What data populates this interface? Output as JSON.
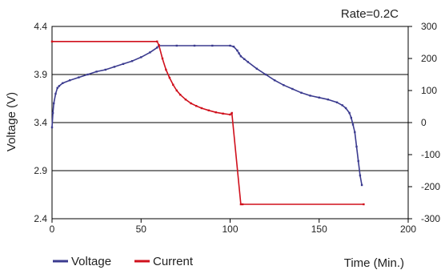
{
  "chart_data": {
    "type": "line",
    "annotation": "Rate=0.2C",
    "ylabel": "Voltage (V)",
    "xlabel": "Time (Min.)",
    "xlim": [
      0,
      200
    ],
    "ylim": [
      2.4,
      4.4
    ],
    "y2lim": [
      -300,
      300
    ],
    "x_ticks": [
      "0",
      "50",
      "100",
      "150",
      "200"
    ],
    "y_ticks": [
      "2.4",
      "2.9",
      "3.4",
      "3.9",
      "4.4"
    ],
    "y2_ticks": [
      "-300",
      "-200",
      "-100",
      "0",
      "100",
      "200",
      "300"
    ],
    "grid": "horizontal",
    "legend_placement": "bottom-left",
    "series": [
      {
        "name": "Voltage",
        "axis": "left",
        "color": "#3b3b8f",
        "x": [
          0,
          0.5,
          1,
          2,
          3,
          4,
          6,
          10,
          15,
          20,
          25,
          30,
          35,
          40,
          45,
          50,
          55,
          59,
          60,
          70,
          80,
          90,
          100,
          102,
          104,
          105,
          106,
          108,
          110,
          115,
          120,
          125,
          130,
          135,
          140,
          145,
          150,
          155,
          160,
          163,
          165,
          167,
          168,
          169,
          170,
          171,
          172,
          173,
          174
        ],
        "values": [
          3.35,
          3.5,
          3.6,
          3.7,
          3.76,
          3.78,
          3.81,
          3.84,
          3.87,
          3.9,
          3.93,
          3.95,
          3.98,
          4.01,
          4.04,
          4.08,
          4.13,
          4.18,
          4.2,
          4.2,
          4.2,
          4.2,
          4.2,
          4.19,
          4.15,
          4.12,
          4.09,
          4.06,
          4.03,
          3.96,
          3.9,
          3.84,
          3.79,
          3.75,
          3.71,
          3.68,
          3.66,
          3.64,
          3.61,
          3.58,
          3.55,
          3.5,
          3.45,
          3.38,
          3.3,
          3.15,
          3.0,
          2.85,
          2.75
        ]
      },
      {
        "name": "Current",
        "axis": "right",
        "color": "#d0101c",
        "x": [
          0,
          59,
          60,
          62,
          64,
          66,
          68,
          70,
          72,
          75,
          78,
          81,
          84,
          88,
          92,
          96,
          100,
          101,
          106,
          107,
          175
        ],
        "values": [
          253,
          253,
          242,
          200,
          165,
          140,
          118,
          100,
          87,
          72,
          60,
          52,
          45,
          38,
          32,
          28,
          25,
          30,
          -255,
          -255,
          -255
        ]
      }
    ]
  },
  "legend": [
    {
      "label": "Voltage",
      "color": "#3b3b8f"
    },
    {
      "label": "Current",
      "color": "#d0101c"
    }
  ]
}
